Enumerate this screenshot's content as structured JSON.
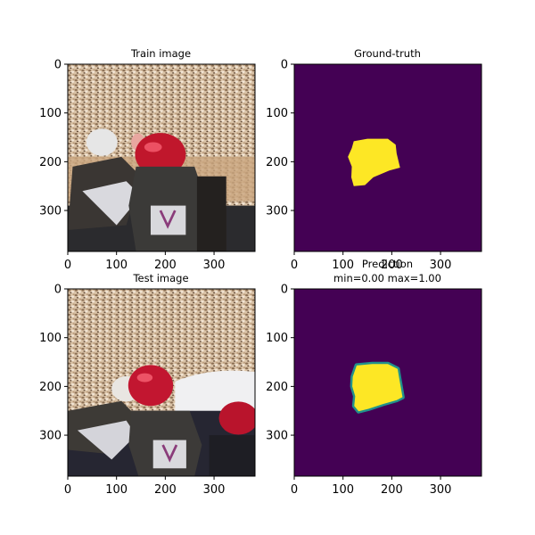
{
  "figure": {
    "colors": {
      "background": "#ffffff",
      "mask_bg": "#440154",
      "mask_fg": "#fde725",
      "edge": "#21918c"
    }
  },
  "chart_data": [
    {
      "type": "heatmap",
      "panel": "train",
      "title": "Train image",
      "content": "photo",
      "xlim": [
        0,
        384
      ],
      "ylim": [
        384,
        0
      ],
      "xticks": [
        0,
        100,
        200,
        300
      ],
      "yticks": [
        0,
        100,
        200,
        300
      ]
    },
    {
      "type": "heatmap",
      "panel": "ground_truth",
      "title": "Ground-truth",
      "content": "binary mask",
      "xlim": [
        0,
        384
      ],
      "ylim": [
        384,
        0
      ],
      "xticks": [
        0,
        100,
        200,
        300
      ],
      "yticks": [
        0,
        100,
        200,
        300
      ],
      "mask_polygon": [
        [
          122,
          158
        ],
        [
          150,
          153
        ],
        [
          192,
          153
        ],
        [
          208,
          165
        ],
        [
          210,
          183
        ],
        [
          217,
          212
        ],
        [
          195,
          218
        ],
        [
          162,
          232
        ],
        [
          145,
          248
        ],
        [
          122,
          250
        ],
        [
          117,
          232
        ],
        [
          118,
          210
        ],
        [
          110,
          190
        ],
        [
          118,
          172
        ]
      ]
    },
    {
      "type": "heatmap",
      "panel": "test",
      "title": "Test image",
      "content": "photo",
      "xlim": [
        0,
        384
      ],
      "ylim": [
        384,
        0
      ],
      "xticks": [
        0,
        100,
        200,
        300
      ],
      "yticks": [
        0,
        100,
        200,
        300
      ]
    },
    {
      "type": "heatmap",
      "panel": "prediction",
      "title": "Prediction",
      "subtitle": "min=0.00 max=1.00",
      "content": "probability mask",
      "value_range": [
        0.0,
        1.0
      ],
      "xlim": [
        0,
        384
      ],
      "ylim": [
        384,
        0
      ],
      "xticks": [
        0,
        100,
        200,
        300
      ],
      "yticks": [
        0,
        100,
        200,
        300
      ],
      "mask_polygon": [
        [
          128,
          157
        ],
        [
          160,
          154
        ],
        [
          192,
          154
        ],
        [
          212,
          164
        ],
        [
          215,
          182
        ],
        [
          222,
          222
        ],
        [
          210,
          228
        ],
        [
          182,
          236
        ],
        [
          152,
          246
        ],
        [
          132,
          251
        ],
        [
          123,
          240
        ],
        [
          125,
          220
        ],
        [
          119,
          200
        ],
        [
          120,
          180
        ]
      ]
    }
  ]
}
